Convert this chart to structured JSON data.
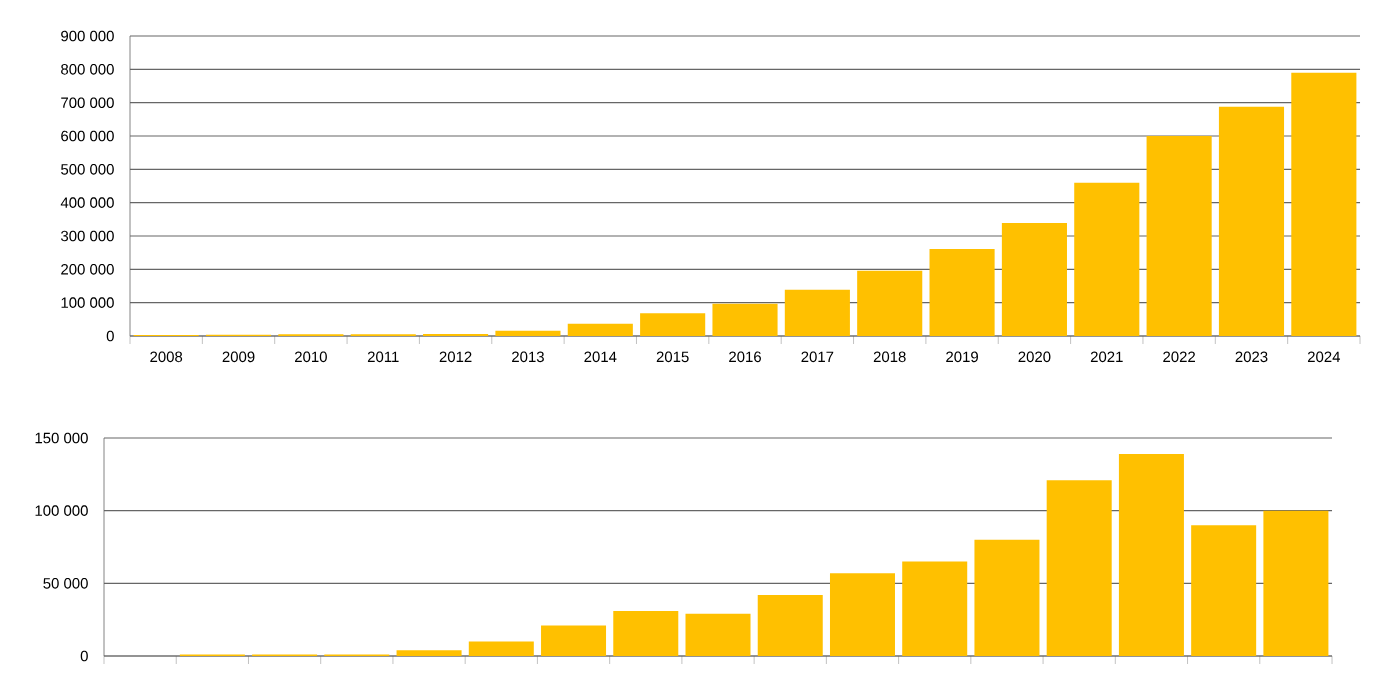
{
  "chart_data": [
    {
      "type": "bar",
      "categories": [
        "2008",
        "2009",
        "2010",
        "2011",
        "2012",
        "2013",
        "2014",
        "2015",
        "2016",
        "2017",
        "2018",
        "2019",
        "2020",
        "2021",
        "2022",
        "2023",
        "2024"
      ],
      "values": [
        3000,
        4000,
        5000,
        5000,
        6000,
        16000,
        37000,
        68000,
        97000,
        139000,
        196000,
        261000,
        339000,
        460000,
        600000,
        688000,
        790000
      ],
      "color": "#ffc000",
      "ylim": [
        0,
        900000
      ],
      "yticks": [
        0,
        {
          "value": 100000,
          "label": "100 000"
        },
        {
          "value": 200000,
          "label": "200 000"
        },
        {
          "value": 300000,
          "label": "300 000"
        },
        {
          "value": 400000,
          "label": "400 000"
        },
        {
          "value": 500000,
          "label": "500 000"
        },
        {
          "value": 600000,
          "label": "600 000"
        },
        {
          "value": 700000,
          "label": "700 000"
        },
        {
          "value": 800000,
          "label": "800 000"
        },
        {
          "value": 900000,
          "label": "900 000"
        }
      ],
      "grid": "y"
    },
    {
      "type": "bar",
      "categories": [
        null,
        null,
        null,
        null,
        null,
        null,
        null,
        null,
        null,
        null,
        null,
        null,
        null,
        null,
        null,
        null,
        null
      ],
      "values": [
        null,
        1000,
        1000,
        1000,
        4000,
        10000,
        21000,
        31000,
        29000,
        42000,
        57000,
        65000,
        80000,
        121000,
        139000,
        90000,
        100000
      ],
      "color": "#ffc000",
      "ylim": [
        0,
        150000
      ],
      "yticks": [
        0,
        {
          "value": 50000,
          "label": "50 000"
        },
        {
          "value": 100000,
          "label": "100 000"
        },
        {
          "value": 150000,
          "label": "150 000"
        }
      ],
      "grid": "y",
      "tick_labels": "y"
    }
  ]
}
